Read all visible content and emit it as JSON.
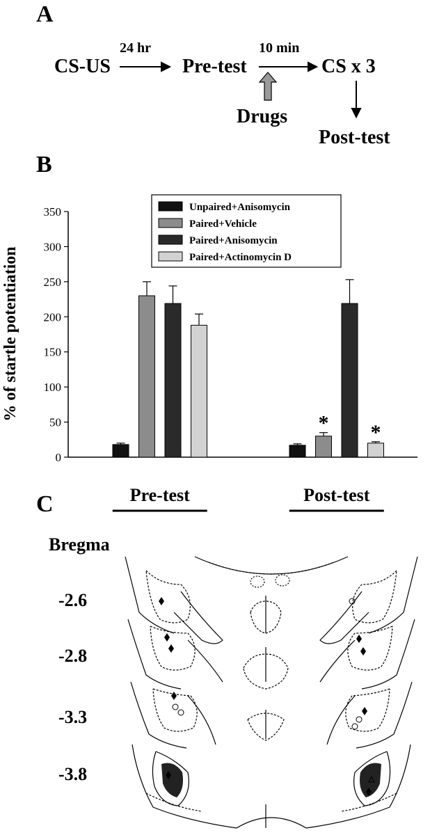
{
  "panel_a": {
    "label": "A",
    "flow": {
      "step1": "CS-US",
      "arrow1": "24 hr",
      "step2": "Pre-test",
      "arrow2": "10 min",
      "step3": "CS x 3",
      "drugs": "Drugs",
      "step4": "Post-test"
    }
  },
  "panel_b": {
    "label": "B"
  },
  "panel_c": {
    "label": "C",
    "bregma_title": "Bregma",
    "levels": [
      "-2.6",
      "-2.8",
      "-3.3",
      "-3.8"
    ]
  },
  "chart_data": {
    "type": "bar",
    "categories": [
      "Pre-test",
      "Post-test"
    ],
    "ylabel": "% of startle potentiation",
    "ylim": [
      0,
      350
    ],
    "yticks": [
      0,
      50,
      100,
      150,
      200,
      250,
      300,
      350
    ],
    "legend_position": "top-right",
    "series": [
      {
        "name": "Unpaired+Anisomycin",
        "values": [
          18,
          17
        ],
        "errors": [
          2,
          2
        ],
        "color": "#111111",
        "stars": [
          false,
          false
        ]
      },
      {
        "name": "Paired+Vehicle",
        "values": [
          230,
          30
        ],
        "errors": [
          20,
          5
        ],
        "color": "#8c8c8c",
        "stars": [
          false,
          true
        ]
      },
      {
        "name": "Paired+Anisomycin",
        "values": [
          219,
          219
        ],
        "errors": [
          25,
          34
        ],
        "color": "#2a2a2a",
        "stars": [
          false,
          false
        ]
      },
      {
        "name": "Paired+Actinomycin D",
        "values": [
          188,
          20
        ],
        "errors": [
          16,
          2
        ],
        "color": "#d2d2d2",
        "stars": [
          false,
          true
        ]
      }
    ],
    "star_symbol": "*"
  }
}
